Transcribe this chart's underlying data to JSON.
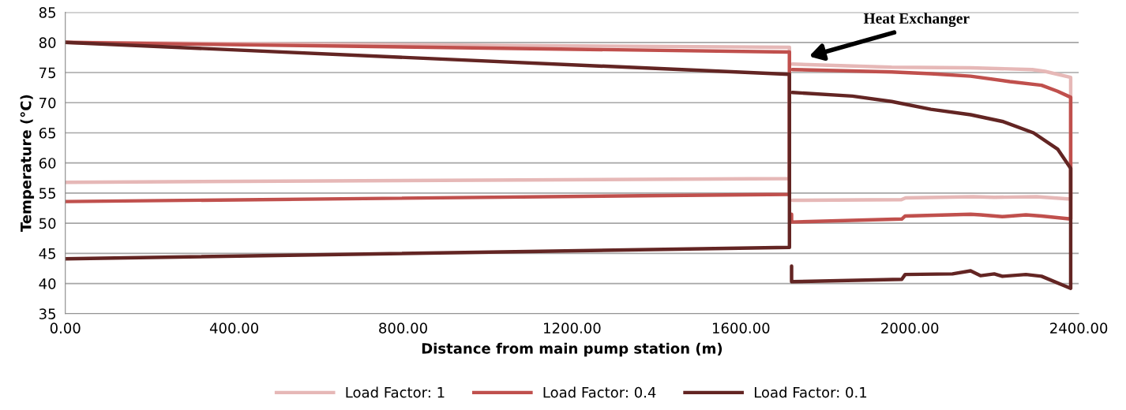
{
  "chart_data": {
    "type": "line",
    "xlabel": "Distance from main pump station (m)",
    "ylabel": "Temperature (°C)",
    "xlim": [
      0,
      2400
    ],
    "xticks": [
      {
        "value": 0,
        "label": "0.00"
      },
      {
        "value": 400,
        "label": "400.00"
      },
      {
        "value": 800,
        "label": "800.00"
      },
      {
        "value": 1200,
        "label": "1200.00"
      },
      {
        "value": 1600,
        "label": "1600.00"
      },
      {
        "value": 2000,
        "label": "2000.00"
      },
      {
        "value": 2400,
        "label": "2400.00"
      }
    ],
    "ylim": [
      35,
      85
    ],
    "yticks": [
      35,
      40,
      45,
      50,
      55,
      60,
      65,
      70,
      75,
      80,
      85
    ],
    "grid": "y",
    "legend": "bottom",
    "marker": "none",
    "line_style": "solid",
    "annotations": [
      "Heat Exchanger"
    ],
    "series": [
      {
        "name": "Load Factor: 1",
        "color": "#e6b8b7",
        "x": [
          0,
          1715,
          1715,
          0,
          null,
          1722,
          1980,
          1990,
          2150,
          2200,
          2300,
          2381,
          2381,
          2320,
          2290,
          2144,
          1957,
          1722
        ],
        "values": [
          56.8,
          57.4,
          79.2,
          80,
          null,
          53.8,
          53.9,
          54.2,
          54.4,
          54.3,
          54.4,
          54.0,
          74.2,
          75.2,
          75.5,
          75.8,
          75.9,
          76.4
        ]
      },
      {
        "name": "Load Factor: 0.4",
        "color": "#c0504d",
        "x": [
          0,
          1715,
          1715,
          0,
          null,
          1720,
          1720,
          1981,
          1989,
          2144,
          2168,
          2219,
          2275,
          2312,
          2381,
          2381,
          2350,
          2312,
          2237,
          2144,
          2050,
          1957,
          1722
        ],
        "values": [
          53.6,
          54.8,
          78.4,
          80,
          null,
          51.5,
          50.2,
          50.7,
          51.2,
          51.5,
          51.4,
          51.1,
          51.4,
          51.2,
          50.7,
          70.9,
          71.9,
          72.9,
          73.5,
          74.4,
          74.8,
          75.1,
          75.5
        ]
      },
      {
        "name": "Load Factor: 0.1",
        "color": "#632523",
        "x": [
          0,
          1715,
          1715,
          0,
          null,
          1720,
          1720,
          1981,
          1989,
          2101,
          2144,
          2168,
          2200,
          2219,
          2275,
          2312,
          2381,
          2381,
          2350,
          2293,
          2219,
          2144,
          2050,
          1957,
          1864,
          1722
        ],
        "values": [
          44.1,
          46.0,
          74.7,
          80,
          null,
          42.9,
          40.3,
          40.7,
          41.5,
          41.6,
          42.1,
          41.3,
          41.6,
          41.2,
          41.5,
          41.2,
          39.2,
          59.1,
          62.3,
          65.0,
          66.9,
          68.0,
          68.9,
          70.2,
          71.1,
          71.7
        ]
      }
    ]
  }
}
